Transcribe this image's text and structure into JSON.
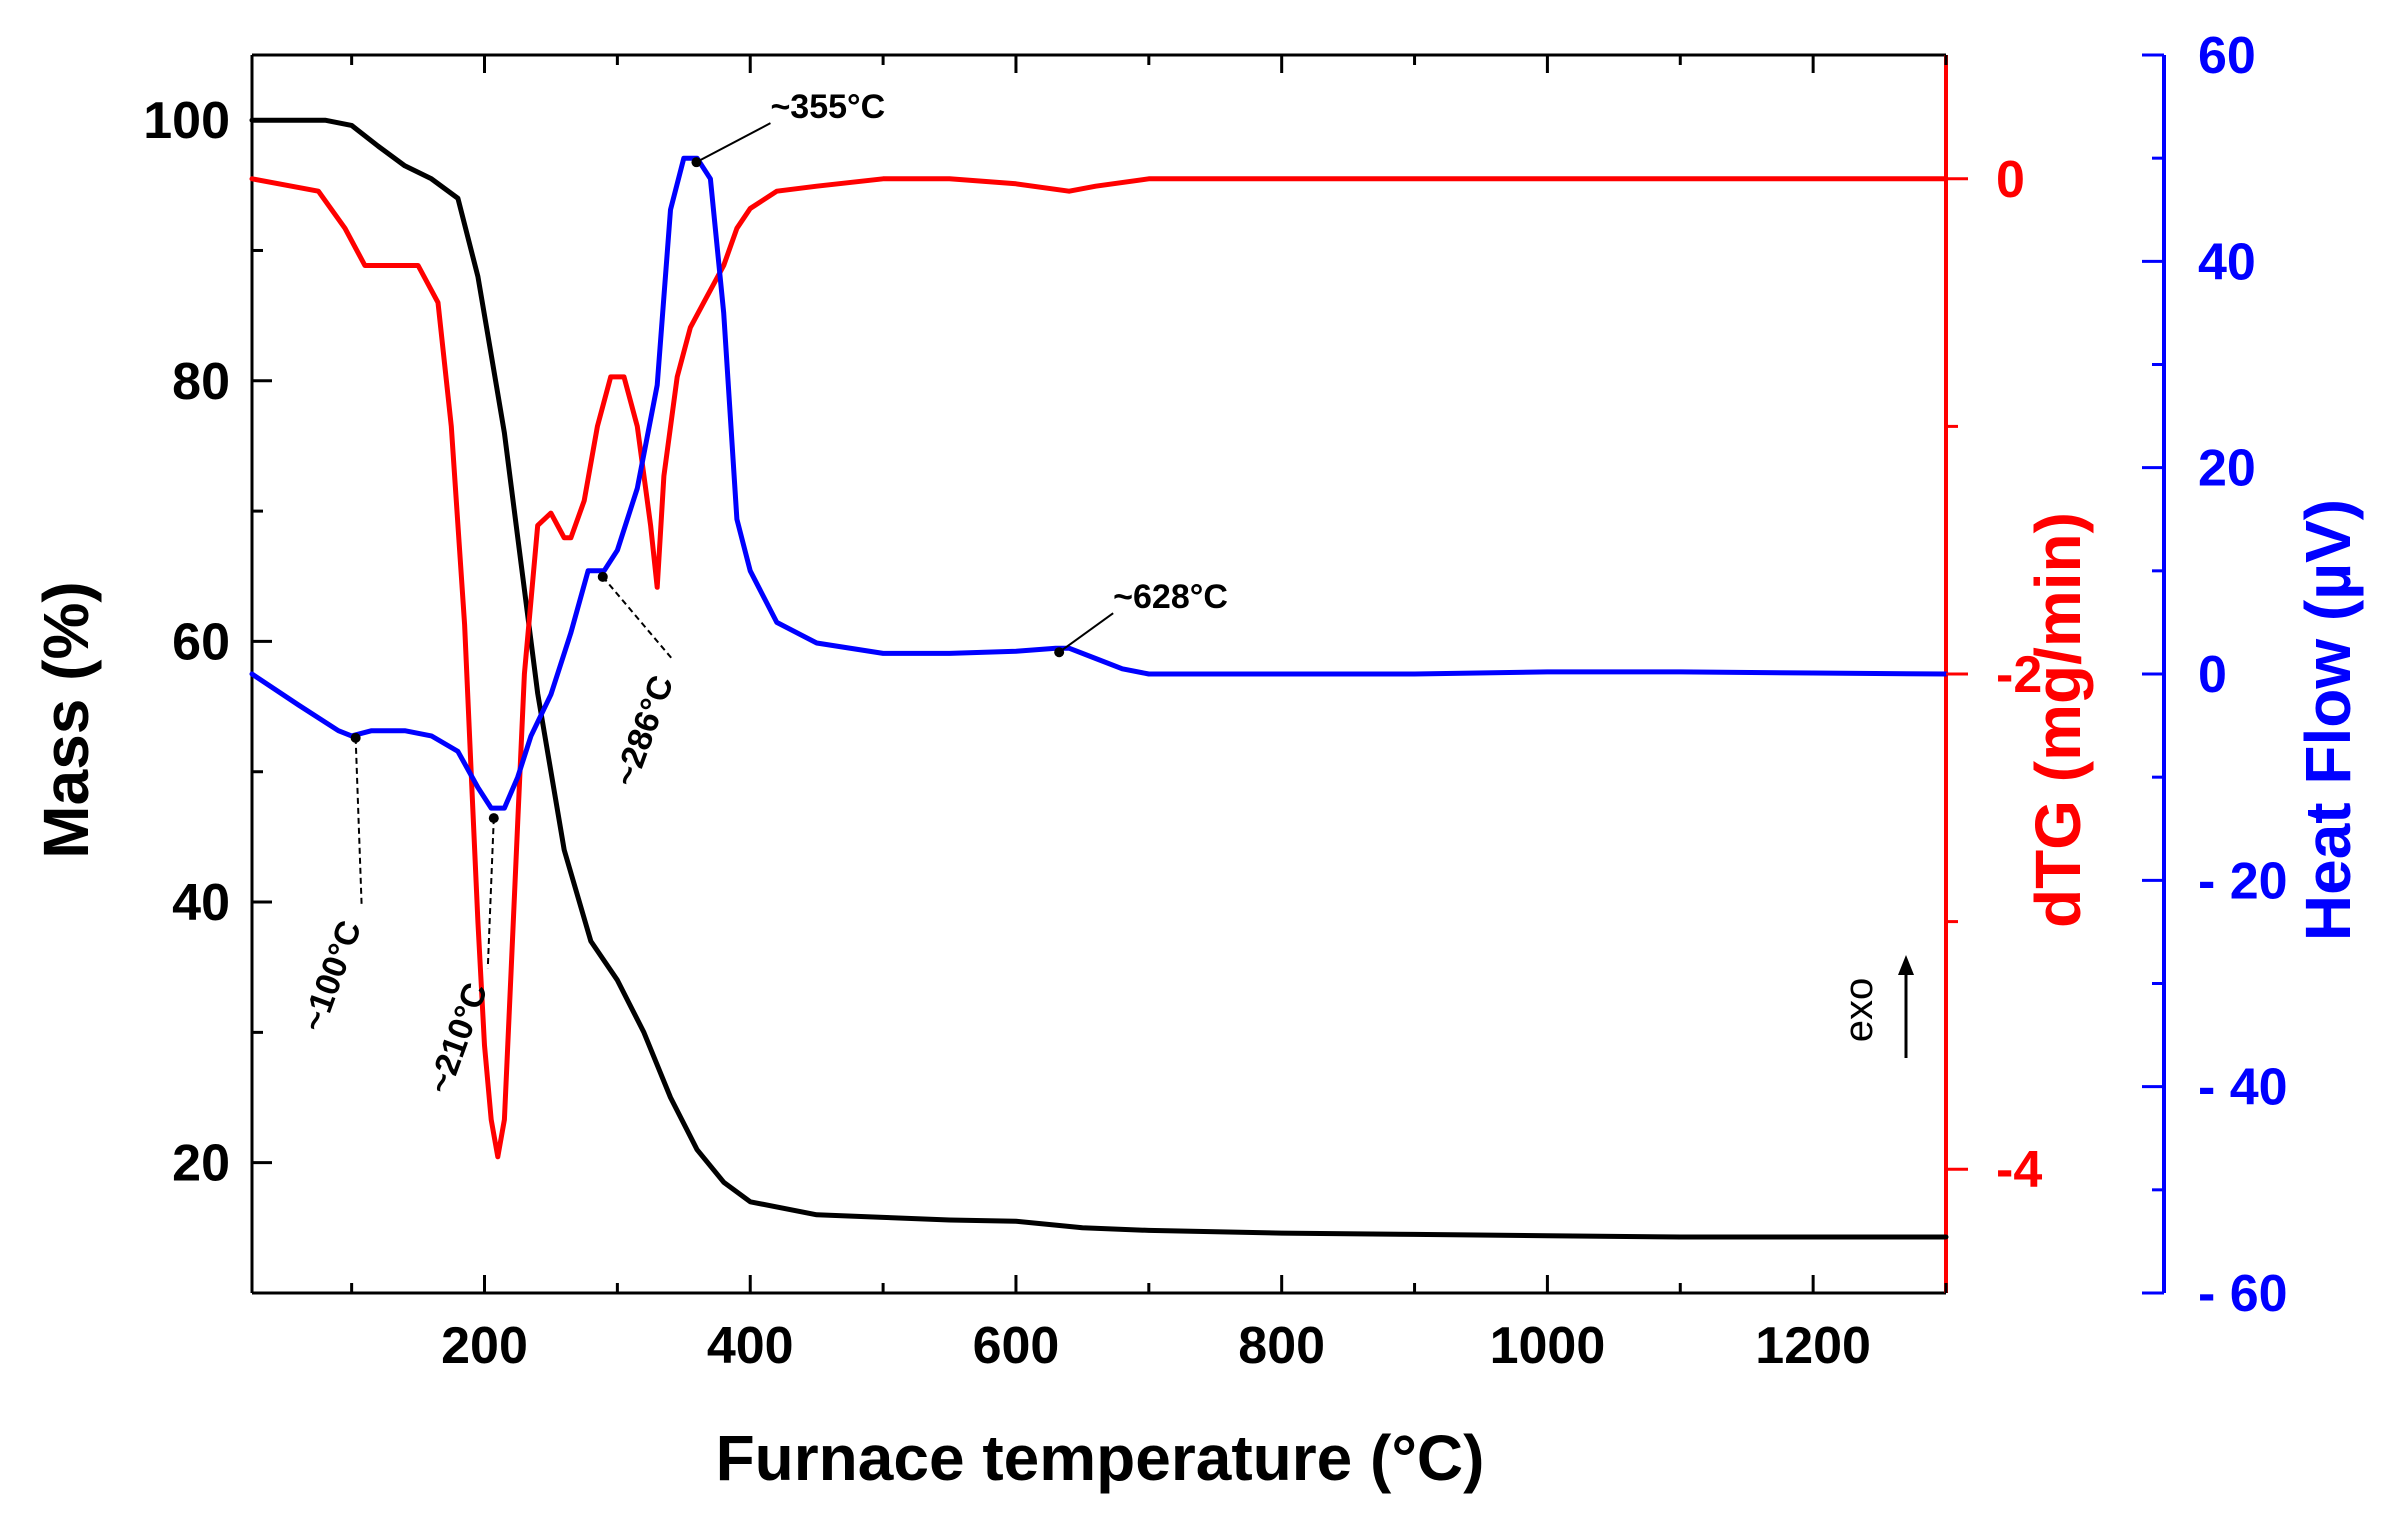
{
  "chart_data": {
    "type": "line",
    "xlabel": "Furnace temperature (°C)",
    "xlim": [
      25,
      1300
    ],
    "x_ticks": [
      200,
      400,
      600,
      800,
      1000,
      1200
    ],
    "axes": {
      "mass": {
        "label": "Mass (%)",
        "color": "#000000",
        "ylim": [
          10,
          105
        ],
        "ticks": [
          20,
          40,
          60,
          80,
          100
        ]
      },
      "dtg": {
        "label": "dTG (mg/min)",
        "color": "#ff0000",
        "ylim": [
          -4.5,
          0.5
        ],
        "ticks": [
          0,
          -2,
          -4
        ]
      },
      "heat": {
        "label": "Heat Flow (µV)",
        "color": "#0000ff",
        "ylim": [
          -60,
          60
        ],
        "ticks": [
          60,
          40,
          20,
          0,
          -20,
          -40,
          -60
        ],
        "tick_labels": [
          "60",
          "40",
          "20",
          "0",
          "- 20",
          "- 40",
          "- 60"
        ]
      }
    },
    "series": [
      {
        "axis": "mass",
        "x": [
          25,
          80,
          100,
          120,
          140,
          160,
          180,
          195,
          205,
          215,
          225,
          240,
          260,
          280,
          300,
          320,
          340,
          360,
          380,
          400,
          450,
          500,
          550,
          600,
          650,
          700,
          800,
          900,
          1000,
          1100,
          1200,
          1300
        ],
        "values": [
          100,
          100,
          99.6,
          98,
          96.5,
          95.5,
          94,
          88,
          82,
          76,
          68,
          56,
          44,
          37,
          34,
          30,
          25,
          21,
          18.5,
          17,
          16,
          15.8,
          15.6,
          15.5,
          15,
          14.8,
          14.6,
          14.5,
          14.4,
          14.3,
          14.3,
          14.3
        ]
      },
      {
        "axis": "dtg",
        "x": [
          25,
          75,
          95,
          110,
          130,
          150,
          165,
          175,
          185,
          190,
          195,
          200,
          205,
          210,
          215,
          220,
          225,
          230,
          240,
          250,
          260,
          265,
          275,
          285,
          295,
          305,
          315,
          325,
          330,
          335,
          345,
          355,
          365,
          380,
          390,
          400,
          420,
          450,
          500,
          550,
          600,
          640,
          660,
          700,
          800,
          900,
          1000,
          1100,
          1200,
          1300
        ],
        "values": [
          0,
          -0.05,
          -0.2,
          -0.35,
          -0.35,
          -0.35,
          -0.5,
          -1.0,
          -1.8,
          -2.4,
          -3.0,
          -3.5,
          -3.8,
          -3.95,
          -3.8,
          -3.2,
          -2.6,
          -2.0,
          -1.4,
          -1.35,
          -1.45,
          -1.45,
          -1.3,
          -1.0,
          -0.8,
          -0.8,
          -1.0,
          -1.4,
          -1.65,
          -1.2,
          -0.8,
          -0.6,
          -0.5,
          -0.35,
          -0.2,
          -0.12,
          -0.05,
          -0.03,
          0,
          0,
          -0.02,
          -0.05,
          -0.03,
          0,
          0,
          0,
          0,
          0,
          0,
          0
        ]
      },
      {
        "axis": "heat",
        "x": [
          25,
          60,
          90,
          100,
          115,
          140,
          160,
          180,
          195,
          205,
          215,
          225,
          235,
          250,
          265,
          278,
          290,
          300,
          315,
          330,
          340,
          350,
          360,
          370,
          380,
          390,
          400,
          420,
          450,
          500,
          550,
          600,
          630,
          640,
          660,
          680,
          700,
          800,
          900,
          1000,
          1100,
          1200,
          1300
        ],
        "values": [
          0,
          -3,
          -5.5,
          -6,
          -5.5,
          -5.5,
          -6,
          -7.5,
          -11,
          -13,
          -13,
          -10,
          -6,
          -2,
          4,
          10,
          10,
          12,
          18,
          28,
          45,
          50,
          50,
          48,
          35,
          15,
          10,
          5,
          3,
          2,
          2,
          2.2,
          2.5,
          2.5,
          1.5,
          0.5,
          0,
          0,
          0,
          0.2,
          0.2,
          0.1,
          0
        ]
      }
    ],
    "annotations": [
      {
        "text": "~100°C",
        "x": 100,
        "axis": "heat",
        "value": -6
      },
      {
        "text": "~210°C",
        "x": 210,
        "axis": "heat",
        "value": -13
      },
      {
        "text": "~286°C",
        "x": 286,
        "axis": "heat",
        "value": 10
      },
      {
        "text": "~355°C",
        "x": 355,
        "axis": "heat",
        "value": 50
      },
      {
        "text": "~628°C",
        "x": 628,
        "axis": "heat",
        "value": 2.5
      }
    ],
    "exo_label": "exo"
  }
}
